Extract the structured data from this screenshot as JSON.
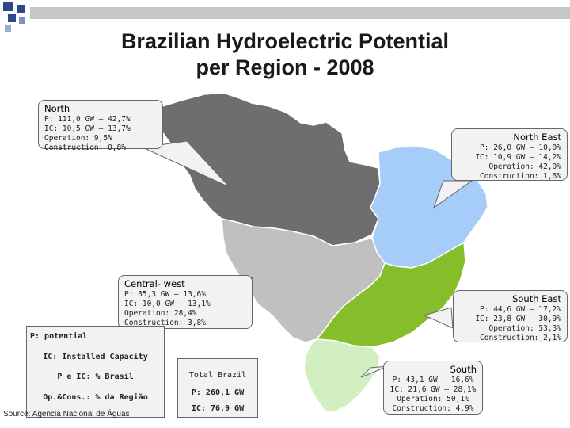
{
  "title": {
    "line1": "Brazilian Hydroelectric Potential",
    "line2": "per Region - 2008"
  },
  "colors": {
    "north": "#6e6e6e",
    "north_east": "#a6cdfa",
    "central_west": "#c0c0c0",
    "south_east": "#86bd2a",
    "south": "#d2efc2",
    "border": "#ffffff",
    "header_square": "#2a4a8a",
    "header_bar": "#c7c7c7"
  },
  "regions": [
    {
      "key": "north",
      "name": "North",
      "lines": [
        "P: 111,0 GW – 42,7%",
        "IC: 10,5 GW – 13,7%",
        "Operation: 9,5%",
        "Construction: 0,8%"
      ]
    },
    {
      "key": "north_east",
      "name": "North East",
      "lines": [
        "P: 26,0 GW – 10,0%",
        "IC: 10,9 GW – 14,2%",
        "Operation: 42,0%",
        "Construction: 1,6%"
      ]
    },
    {
      "key": "central_west",
      "name": "Central- west",
      "lines": [
        "P: 35,3 GW – 13,6%",
        "IC: 10,0 GW – 13,1%",
        "Operation: 28,4%",
        "Construction: 3,8%"
      ]
    },
    {
      "key": "south_east",
      "name": "South East",
      "lines": [
        "P: 44,6 GW – 17,2%",
        "IC: 23,8 GW – 30,9%",
        "Operation: 53,3%",
        "Construction: 2,1%"
      ]
    },
    {
      "key": "south",
      "name": "South",
      "lines": [
        "P: 43,1 GW – 16,6%",
        "IC: 21,6 GW – 28,1%",
        "Operation: 50,1%",
        "Construction: 4,9%"
      ]
    }
  ],
  "legend": {
    "potential": "P: potential",
    "installed": "IC: Installed Capacity",
    "brasil": "P e IC: % Brasil",
    "region": "Op.&Cons.: % da Região"
  },
  "source": "Source: Agencia Nacional de Águas",
  "total": {
    "label": "Total Brazil",
    "potential": "P: 260,1 GW",
    "installed": "IC: 76,9 GW"
  }
}
